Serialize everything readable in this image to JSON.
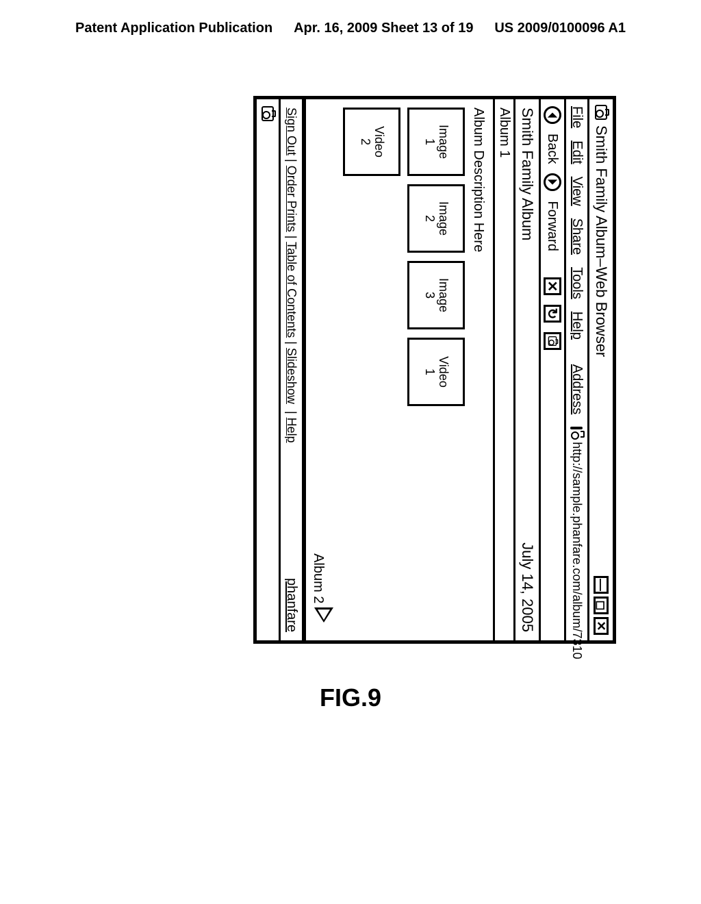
{
  "header": {
    "left": "Patent Application Publication",
    "center": "Apr. 16, 2009  Sheet 13 of 19",
    "right": "US 2009/0100096 A1"
  },
  "window": {
    "title": "Smith Family Album–Web Browser",
    "win_min": "—",
    "win_max": "◻",
    "win_close": "✕"
  },
  "menu": {
    "file": "File",
    "edit": "Edit",
    "view": "View",
    "share": "Share",
    "tools": "Tools",
    "help": "Help",
    "address_label": "Address",
    "address_url": "http://sample.phanfare.com/album/7310"
  },
  "nav": {
    "back": "Back",
    "forward": "Forward"
  },
  "album": {
    "title": "Smith Family Album",
    "date": "July 14, 2005",
    "subtitle": "Album 1",
    "description": "Album Description Here",
    "thumbs_row1": [
      "Image\n1",
      "Image\n2",
      "Image\n3",
      "Video\n1"
    ],
    "thumbs_row2": [
      "Video\n2"
    ],
    "pager_next": "Album 2"
  },
  "footer": {
    "signout": "Sign Out",
    "order": "Order Prints",
    "toc": "Table of Contents",
    "slideshow": "Slideshow",
    "help": "Help",
    "brand": "phanfare"
  },
  "figure_label": "FIG.9"
}
